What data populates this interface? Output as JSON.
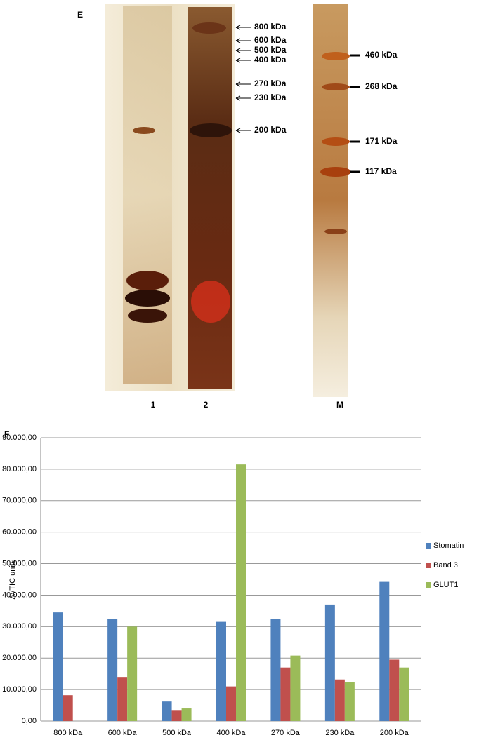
{
  "panels": [
    "E",
    "F"
  ],
  "gel": {
    "lanes": [
      "1",
      "2",
      "M"
    ],
    "markers_left": [
      "800 kDa",
      "600 kDa",
      "500 kDa",
      "400 kDa",
      "270 kDa",
      "230 kDa",
      "200 kDa"
    ],
    "markers_right": [
      "460 kDa",
      "268 kDa",
      "171 kDa",
      "117 kDa"
    ]
  },
  "chart_data": {
    "type": "bar",
    "ylabel": "AvTIC units",
    "categories": [
      "800 kDa",
      "600 kDa",
      "500 kDa",
      "400 kDa",
      "270 kDa",
      "230 kDa",
      "200 kDa"
    ],
    "series": [
      {
        "name": "Stomatin",
        "color": "#4f81bd",
        "values": [
          34500,
          32500,
          6200,
          31500,
          32500,
          37000,
          44200
        ]
      },
      {
        "name": "Band 3",
        "color": "#c0504d",
        "values": [
          8200,
          14000,
          3500,
          11000,
          17000,
          13200,
          19500
        ]
      },
      {
        "name": "GLUT1",
        "color": "#9bbb59",
        "values": [
          null,
          30000,
          4000,
          81500,
          20800,
          12300,
          17000
        ]
      }
    ],
    "ylim": [
      0,
      90000
    ],
    "yticks": [
      {
        "value": 0,
        "label": "0,00"
      },
      {
        "value": 10000,
        "label": "10.000,00"
      },
      {
        "value": 20000,
        "label": "20.000,00"
      },
      {
        "value": 30000,
        "label": "30.000,00"
      },
      {
        "value": 40000,
        "label": "40.000,00"
      },
      {
        "value": 50000,
        "label": "50.000,00"
      },
      {
        "value": 60000,
        "label": "60.000,00"
      },
      {
        "value": 70000,
        "label": "70.000,00"
      },
      {
        "value": 80000,
        "label": "80.000,00"
      },
      {
        "value": 90000,
        "label": "90.000,00"
      }
    ],
    "grid": true,
    "legend": "right"
  }
}
